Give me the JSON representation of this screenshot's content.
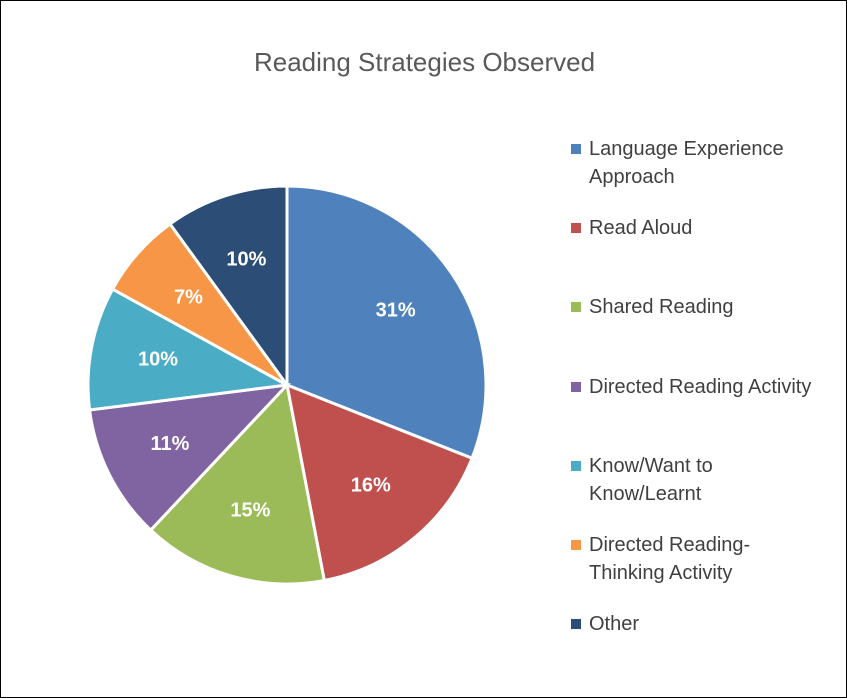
{
  "chart_data": {
    "type": "pie",
    "title": "Reading Strategies Observed",
    "categories": [
      "Language Experience Approach",
      "Read Aloud",
      "Shared Reading",
      "Directed Reading Activity",
      "Know/Want to Know/Learnt",
      "Directed Reading-Thinking Activity",
      "Other"
    ],
    "values": [
      31,
      16,
      15,
      11,
      10,
      7,
      10
    ],
    "value_labels": [
      "31%",
      "16%",
      "15%",
      "11%",
      "10%",
      "7%",
      "10%"
    ],
    "colors": [
      "#4f81bd",
      "#c0504d",
      "#9bbb59",
      "#8064a2",
      "#4bacc6",
      "#f79646",
      "#2c4d75"
    ],
    "legend": "right"
  }
}
